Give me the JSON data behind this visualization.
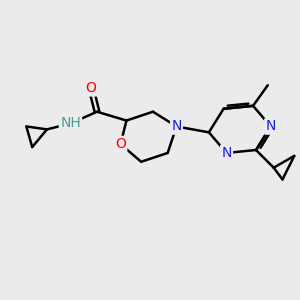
{
  "bg_color": "#ebebeb",
  "atom_colors": {
    "C": "#000000",
    "N": "#1a1aff",
    "O": "#ff0000",
    "H": "#4a9a9a"
  },
  "bond_color": "#000000",
  "bond_width": 1.8,
  "font_size": 10,
  "fig_size": [
    3.0,
    3.0
  ],
  "dpi": 100,
  "xlim": [
    0,
    10
  ],
  "ylim": [
    0,
    10
  ]
}
